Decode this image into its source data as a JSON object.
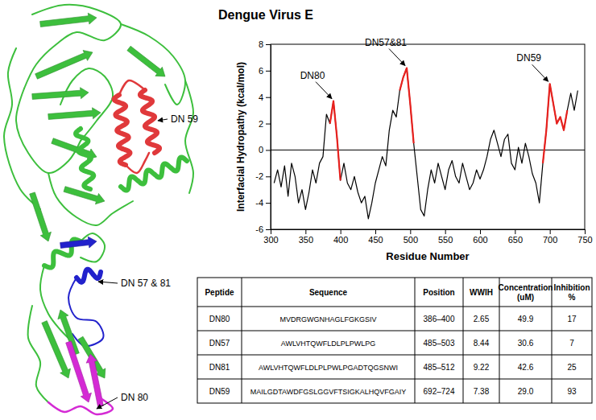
{
  "structure_labels": [
    "DN 59",
    "DN 57 & 81",
    "DN 80"
  ],
  "chart_data": {
    "type": "line",
    "title": "Dengue Virus E",
    "x_label": "Residue Number",
    "y_label": "Interfacial Hydropathy (kcal/mol)",
    "xlim": [
      300,
      750
    ],
    "ylim": [
      -6,
      8
    ],
    "xticks": [
      300,
      350,
      400,
      450,
      500,
      550,
      600,
      650,
      700,
      750
    ],
    "yticks": [
      -6,
      -4,
      -2,
      0,
      2,
      4,
      6,
      8
    ],
    "hline": 0,
    "x": [
      305,
      310,
      315,
      320,
      325,
      330,
      335,
      340,
      345,
      350,
      355,
      360,
      365,
      370,
      375,
      380,
      385,
      390,
      395,
      400,
      405,
      410,
      415,
      420,
      425,
      430,
      435,
      440,
      445,
      450,
      455,
      460,
      465,
      470,
      475,
      480,
      485,
      490,
      495,
      500,
      505,
      510,
      515,
      520,
      525,
      530,
      535,
      540,
      545,
      550,
      555,
      560,
      565,
      570,
      575,
      580,
      585,
      590,
      595,
      600,
      605,
      610,
      615,
      620,
      625,
      630,
      635,
      640,
      645,
      650,
      655,
      660,
      665,
      670,
      675,
      680,
      685,
      690,
      695,
      700,
      705,
      710,
      715,
      720,
      725,
      730,
      735,
      740
    ],
    "series": [
      {
        "color": "#000000",
        "values": [
          -2.5,
          -1.5,
          -2.8,
          -1.2,
          -3.5,
          -1.0,
          -2.0,
          -4.0,
          -3.0,
          -4.5,
          -3.2,
          -1.5,
          -2.5,
          -1.0,
          -0.5,
          2.7,
          2.0,
          3.7,
          1.0,
          -2.3,
          -1.0,
          -2.5,
          -3.0,
          -2.0,
          -3.2,
          -4.0,
          -3.5,
          -5.2,
          -4.0,
          -2.5,
          -1.5,
          -0.5,
          -1.2,
          1.5,
          3.0,
          2.5,
          4.5,
          5.5,
          6.2,
          3.5,
          0.5,
          -2.0,
          -4.5,
          -5.0,
          -3.0,
          -1.5,
          -2.5,
          -1.0,
          -2.0,
          -3.0,
          -1.5,
          -0.8,
          -2.0,
          -2.5,
          -1.0,
          -2.0,
          -3.0,
          -2.5,
          -1.5,
          -2.2,
          -1.5,
          -0.5,
          0.8,
          1.5,
          0.5,
          -0.5,
          0.8,
          1.2,
          -1.0,
          -1.5,
          0.2,
          -1.0,
          0.5,
          -0.5,
          -1.8,
          -2.5,
          -4.0,
          -1.0,
          1.5,
          5.0,
          3.5,
          2.0,
          2.5,
          1.5,
          3.0,
          4.3,
          3.0,
          4.5
        ]
      },
      {
        "color": "#e8211e",
        "values": [
          null,
          null,
          null,
          null,
          null,
          null,
          null,
          null,
          null,
          null,
          null,
          null,
          null,
          null,
          null,
          null,
          2.0,
          3.7,
          1.0,
          -2.3,
          null,
          null,
          null,
          null,
          null,
          null,
          null,
          null,
          null,
          null,
          null,
          null,
          null,
          null,
          null,
          null,
          4.5,
          5.5,
          6.2,
          3.5,
          0.5,
          null,
          null,
          null,
          null,
          null,
          null,
          null,
          null,
          null,
          null,
          null,
          null,
          null,
          null,
          null,
          null,
          null,
          null,
          null,
          null,
          null,
          null,
          null,
          null,
          null,
          null,
          null,
          null,
          null,
          null,
          null,
          null,
          null,
          null,
          null,
          null,
          -1.0,
          1.5,
          5.0,
          3.5,
          2.0,
          2.5,
          1.5,
          3.0,
          null,
          null,
          null
        ]
      }
    ],
    "annotations": [
      {
        "text": "DN80",
        "x": 390,
        "y": 3.7
      },
      {
        "text": "DN57&81",
        "x": 495,
        "y": 6.2
      },
      {
        "text": "DN59",
        "x": 700,
        "y": 5.0
      }
    ]
  },
  "table": {
    "header": [
      [
        "Peptide"
      ],
      [
        "Sequence"
      ],
      [
        "Position"
      ],
      [
        "WWIH"
      ],
      [
        "Concentration",
        "(uM)"
      ],
      [
        "Inhibition",
        "%"
      ]
    ],
    "rows": [
      [
        "DN80",
        "MVDRGWGNHAGLFGKGSIV",
        "386–400",
        "2.65",
        "49.9",
        "17"
      ],
      [
        "DN57",
        "AWLVHTQWFLDLPLPWLPG",
        "485–503",
        "8.44",
        "30.6",
        "7"
      ],
      [
        "DN81",
        "AWLVHTQWFLDLPLPWLPGADTQGSNWI",
        "485–512",
        "9.22",
        "42.6",
        "25"
      ],
      [
        "DN59",
        "MAILGDTAWDFGSLGGVFTSIGKALHQVFGAIY",
        "692–724",
        "7.38",
        "29.0",
        "93"
      ]
    ]
  }
}
